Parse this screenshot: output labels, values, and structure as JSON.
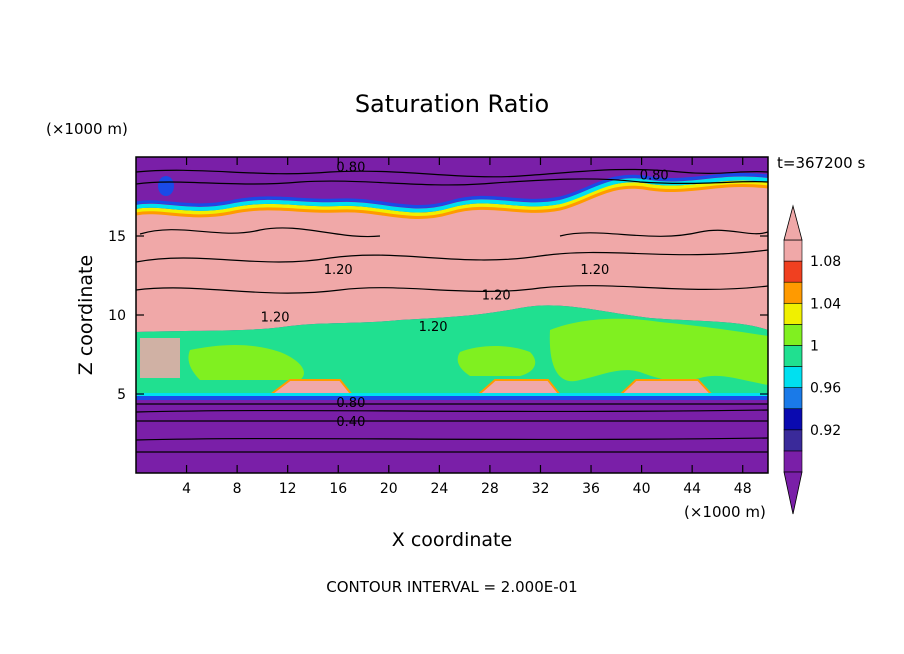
{
  "chart_data": {
    "type": "heatmap",
    "title": "Saturation Ratio",
    "xlabel": "X coordinate",
    "ylabel": "Z coordinate",
    "x_unit": "(×1000 m)",
    "y_unit": "(×1000 m)",
    "time_label": "t=367200 s",
    "footer": "CONTOUR INTERVAL = 2.000E-01",
    "xlim": [
      0,
      50
    ],
    "ylim": [
      0,
      20
    ],
    "x_ticks": [
      4,
      8,
      12,
      16,
      20,
      24,
      28,
      32,
      36,
      40,
      44,
      48
    ],
    "y_ticks": [
      5,
      10,
      15
    ],
    "colorbar": {
      "levels": [
        0.92,
        0.96,
        1,
        1.04,
        1.08
      ],
      "level_labels": [
        "0.92",
        "0.96",
        "1",
        "1.04",
        "1.08"
      ],
      "colors": [
        "#7a1fa8",
        "#3a2a9a",
        "#0a0ab0",
        "#1a7ae8",
        "#00e0f0",
        "#20e090",
        "#80f020",
        "#f0f000",
        "#ff9a00",
        "#f04020",
        "#f0a8a8"
      ]
    },
    "contour_labels": [
      {
        "text": "0.80",
        "x": 17.0,
        "z": 19.4
      },
      {
        "text": "0.80",
        "x": 41.0,
        "z": 18.9
      },
      {
        "text": "1.20",
        "x": 16.0,
        "z": 12.9
      },
      {
        "text": "1.20",
        "x": 36.3,
        "z": 12.9
      },
      {
        "text": "1.20",
        "x": 28.5,
        "z": 11.3
      },
      {
        "text": "1.20",
        "x": 11.0,
        "z": 9.9
      },
      {
        "text": "1.20",
        "x": 23.5,
        "z": 9.3
      },
      {
        "text": "0.80",
        "x": 17.0,
        "z": 4.5
      },
      {
        "text": "0.40",
        "x": 17.0,
        "z": 3.3
      }
    ]
  }
}
